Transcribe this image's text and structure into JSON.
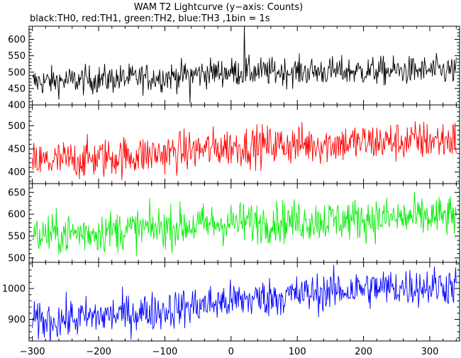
{
  "chart_data": {
    "type": "line",
    "title": "WAM T2 Lightcurve (y−axis: Counts)",
    "subtitle": "black:TH0, red:TH1, green:TH2, blue:TH3 ,1bin = 1s",
    "xlim": [
      -305,
      345
    ],
    "x_ticks": [
      -300,
      -200,
      -100,
      0,
      100,
      200,
      300
    ],
    "x_tick_labels": [
      "−300",
      "−200",
      "−100",
      "0",
      "100",
      "200",
      "300"
    ],
    "x_range": [
      -300,
      340
    ],
    "grid": false,
    "panels": [
      {
        "channel": "TH0",
        "color": "#000000",
        "ylim": [
          400,
          640
        ],
        "y_ticks": [
          400,
          450,
          500,
          550,
          600
        ],
        "trend": [
          [
            -300,
            470
          ],
          [
            -100,
            485
          ],
          [
            -20,
            500
          ],
          [
            340,
            505
          ]
        ],
        "noise": 22,
        "spikes": [
          [
            20,
            640
          ],
          [
            -62,
            405
          ]
        ]
      },
      {
        "channel": "TH1",
        "color": "#ff0000",
        "ylim": [
          375,
          545
        ],
        "y_ticks": [
          400,
          450,
          500
        ],
        "trend": [
          [
            -300,
            420
          ],
          [
            -100,
            440
          ],
          [
            0,
            455
          ],
          [
            340,
            470
          ]
        ],
        "noise": 22,
        "spikes": []
      },
      {
        "channel": "TH2",
        "color": "#00ee00",
        "ylim": [
          490,
          670
        ],
        "y_ticks": [
          500,
          550,
          600,
          650
        ],
        "trend": [
          [
            -300,
            550
          ],
          [
            -100,
            570
          ],
          [
            0,
            580
          ],
          [
            340,
            595
          ]
        ],
        "noise": 24,
        "spikes": []
      },
      {
        "channel": "TH3",
        "color": "#0000ff",
        "ylim": [
          830,
          1085
        ],
        "y_ticks": [
          900,
          1000
        ],
        "trend": [
          [
            -300,
            890
          ],
          [
            -100,
            930
          ],
          [
            0,
            960
          ],
          [
            200,
            1000
          ],
          [
            340,
            1010
          ]
        ],
        "noise": 32,
        "spikes": []
      }
    ]
  }
}
